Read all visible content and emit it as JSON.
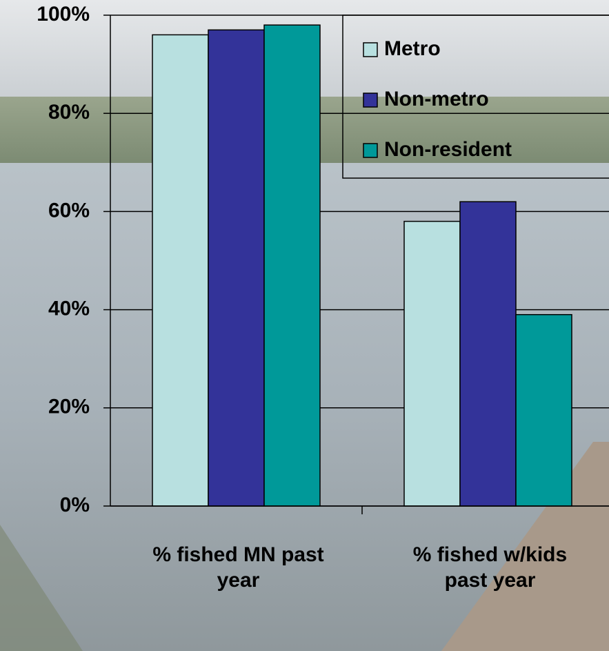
{
  "chart_data": {
    "type": "bar",
    "categories": [
      "% fished MN past year",
      "% fished w/kids past year"
    ],
    "series": [
      {
        "name": "Metro",
        "color": "#b8e0e0",
        "values": [
          96,
          58
        ]
      },
      {
        "name": "Non-metro",
        "color": "#333399",
        "values": [
          97,
          62
        ]
      },
      {
        "name": "Non-resident",
        "color": "#009999",
        "values": [
          98,
          39
        ]
      }
    ],
    "ylim": [
      0,
      100
    ],
    "yticks": [
      {
        "value": 0,
        "label": "0%"
      },
      {
        "value": 20,
        "label": "20%"
      },
      {
        "value": 40,
        "label": "40%"
      },
      {
        "value": 60,
        "label": "60%"
      },
      {
        "value": 80,
        "label": "80%"
      },
      {
        "value": 100,
        "label": "100%"
      }
    ],
    "grid": true,
    "legend": "upper right"
  }
}
